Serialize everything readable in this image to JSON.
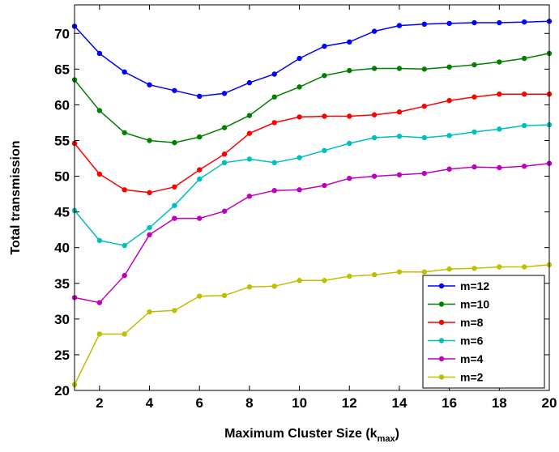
{
  "chart_data": {
    "type": "line",
    "title": "",
    "xlabel": "Maximum Cluster Size (k",
    "xlabel_sub": "max",
    "xlabel_close": ")",
    "ylabel": "Total transmission",
    "xlim": [
      1,
      20
    ],
    "ylim": [
      20,
      74
    ],
    "xticks": [
      2,
      4,
      6,
      8,
      10,
      12,
      14,
      16,
      18,
      20
    ],
    "yticks": [
      20,
      25,
      30,
      35,
      40,
      45,
      50,
      55,
      60,
      65,
      70
    ],
    "grid": false,
    "legend_position": "bottom-right",
    "x": [
      1,
      2,
      3,
      4,
      5,
      6,
      7,
      8,
      9,
      10,
      11,
      12,
      13,
      14,
      15,
      16,
      17,
      18,
      19,
      20
    ],
    "series": [
      {
        "name": "m=12",
        "color": "#0000ff",
        "values": [
          71.0,
          67.2,
          64.6,
          62.8,
          62.0,
          61.2,
          61.6,
          63.1,
          64.3,
          66.5,
          68.2,
          68.8,
          70.3,
          71.1,
          71.3,
          71.4,
          71.5,
          71.5,
          71.6,
          71.7
        ]
      },
      {
        "name": "m=10",
        "color": "#008000",
        "values": [
          63.5,
          59.2,
          56.1,
          55.0,
          54.7,
          55.5,
          56.8,
          58.5,
          61.1,
          62.5,
          64.1,
          64.8,
          65.1,
          65.1,
          65.0,
          65.3,
          65.6,
          66.0,
          66.5,
          67.2
        ]
      },
      {
        "name": "m=8",
        "color": "#ff0000",
        "values": [
          54.6,
          50.3,
          48.1,
          47.7,
          48.5,
          50.9,
          53.1,
          56.0,
          57.5,
          58.3,
          58.4,
          58.4,
          58.6,
          59.0,
          59.8,
          60.6,
          61.1,
          61.5,
          61.5,
          61.5
        ]
      },
      {
        "name": "m=6",
        "color": "#00bfbf",
        "values": [
          45.2,
          41.0,
          40.3,
          42.8,
          45.9,
          49.6,
          51.9,
          52.4,
          51.9,
          52.6,
          53.6,
          54.6,
          55.4,
          55.6,
          55.4,
          55.7,
          56.2,
          56.6,
          57.1,
          57.2
        ]
      },
      {
        "name": "m=4",
        "color": "#bf00bf",
        "values": [
          33.0,
          32.3,
          36.1,
          41.8,
          44.1,
          44.1,
          45.1,
          47.2,
          48.0,
          48.1,
          48.7,
          49.7,
          50.0,
          50.2,
          50.4,
          51.0,
          51.3,
          51.2,
          51.4,
          51.8
        ]
      },
      {
        "name": "m=2",
        "color": "#bfbf00",
        "values": [
          20.8,
          27.9,
          27.9,
          31.0,
          31.2,
          33.2,
          33.3,
          34.5,
          34.6,
          35.4,
          35.4,
          36.0,
          36.2,
          36.6,
          36.6,
          37.0,
          37.1,
          37.3,
          37.3,
          37.6
        ]
      }
    ]
  }
}
